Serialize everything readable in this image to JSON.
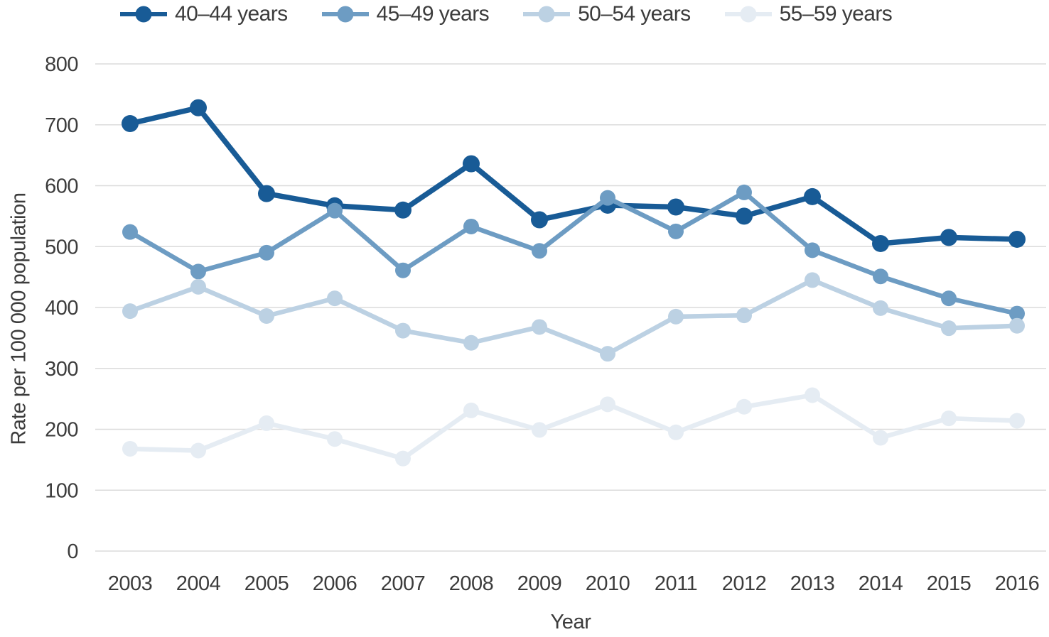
{
  "chart_data": {
    "type": "line",
    "title": "",
    "xlabel": "Year",
    "ylabel": "Rate per 100 000 population",
    "x": [
      2003,
      2004,
      2005,
      2006,
      2007,
      2008,
      2009,
      2010,
      2011,
      2012,
      2013,
      2014,
      2015,
      2016
    ],
    "ylim": [
      0,
      800
    ],
    "yticks": [
      0,
      100,
      200,
      300,
      400,
      500,
      600,
      700,
      800
    ],
    "grid": "horizontal",
    "legend_position": "top",
    "series": [
      {
        "name": "40–44 years",
        "color": "#185B96",
        "values": [
          702,
          728,
          587,
          567,
          560,
          636,
          544,
          568,
          565,
          550,
          582,
          505,
          515,
          512
        ]
      },
      {
        "name": "45–49 years",
        "color": "#6D9CC3",
        "values": [
          524,
          459,
          490,
          559,
          461,
          533,
          493,
          580,
          525,
          589,
          494,
          451,
          415,
          390
        ]
      },
      {
        "name": "50–54 years",
        "color": "#BCD1E3",
        "values": [
          394,
          434,
          386,
          415,
          362,
          342,
          368,
          324,
          385,
          387,
          445,
          399,
          366,
          370
        ]
      },
      {
        "name": "55–59 years",
        "color": "#E5ECF3",
        "values": [
          168,
          165,
          210,
          184,
          152,
          231,
          199,
          241,
          195,
          237,
          256,
          186,
          218,
          214
        ]
      }
    ]
  },
  "colors": {
    "background": "#FFFFFF",
    "gridline": "#DBDBDB",
    "text": "#3C3C3C"
  }
}
